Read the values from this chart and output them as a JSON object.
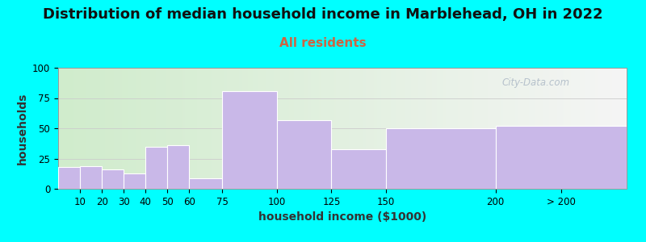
{
  "title": "Distribution of median household income in Marblehead, OH in 2022",
  "subtitle": "All residents",
  "xlabel": "household income ($1000)",
  "ylabel": "households",
  "bar_left_edges": [
    0,
    10,
    20,
    30,
    40,
    50,
    60,
    75,
    100,
    125,
    150,
    200
  ],
  "bar_widths": [
    10,
    10,
    10,
    10,
    10,
    10,
    15,
    25,
    25,
    25,
    50,
    60
  ],
  "bar_values": [
    18,
    19,
    16,
    13,
    35,
    36,
    9,
    81,
    57,
    33,
    50,
    52
  ],
  "xtick_positions": [
    10,
    20,
    30,
    40,
    50,
    60,
    75,
    100,
    125,
    150,
    200,
    230
  ],
  "xtick_labels": [
    "10",
    "20",
    "30",
    "40",
    "50",
    "60",
    "75",
    "100",
    "125",
    "150",
    "200",
    "> 200"
  ],
  "bar_color": "#c9b8e8",
  "bar_edgecolor": "#ffffff",
  "background_color": "#00ffff",
  "plot_bg_gradient_left": "#d0eccc",
  "plot_bg_gradient_right": "#f5f5f5",
  "ylim": [
    0,
    100
  ],
  "xlim": [
    0,
    260
  ],
  "yticks": [
    0,
    25,
    50,
    75,
    100
  ],
  "title_fontsize": 13,
  "subtitle_fontsize": 11,
  "subtitle_color": "#cc6644",
  "axis_label_fontsize": 10,
  "watermark_text": "City-Data.com",
  "watermark_color": "#b0bcc8"
}
